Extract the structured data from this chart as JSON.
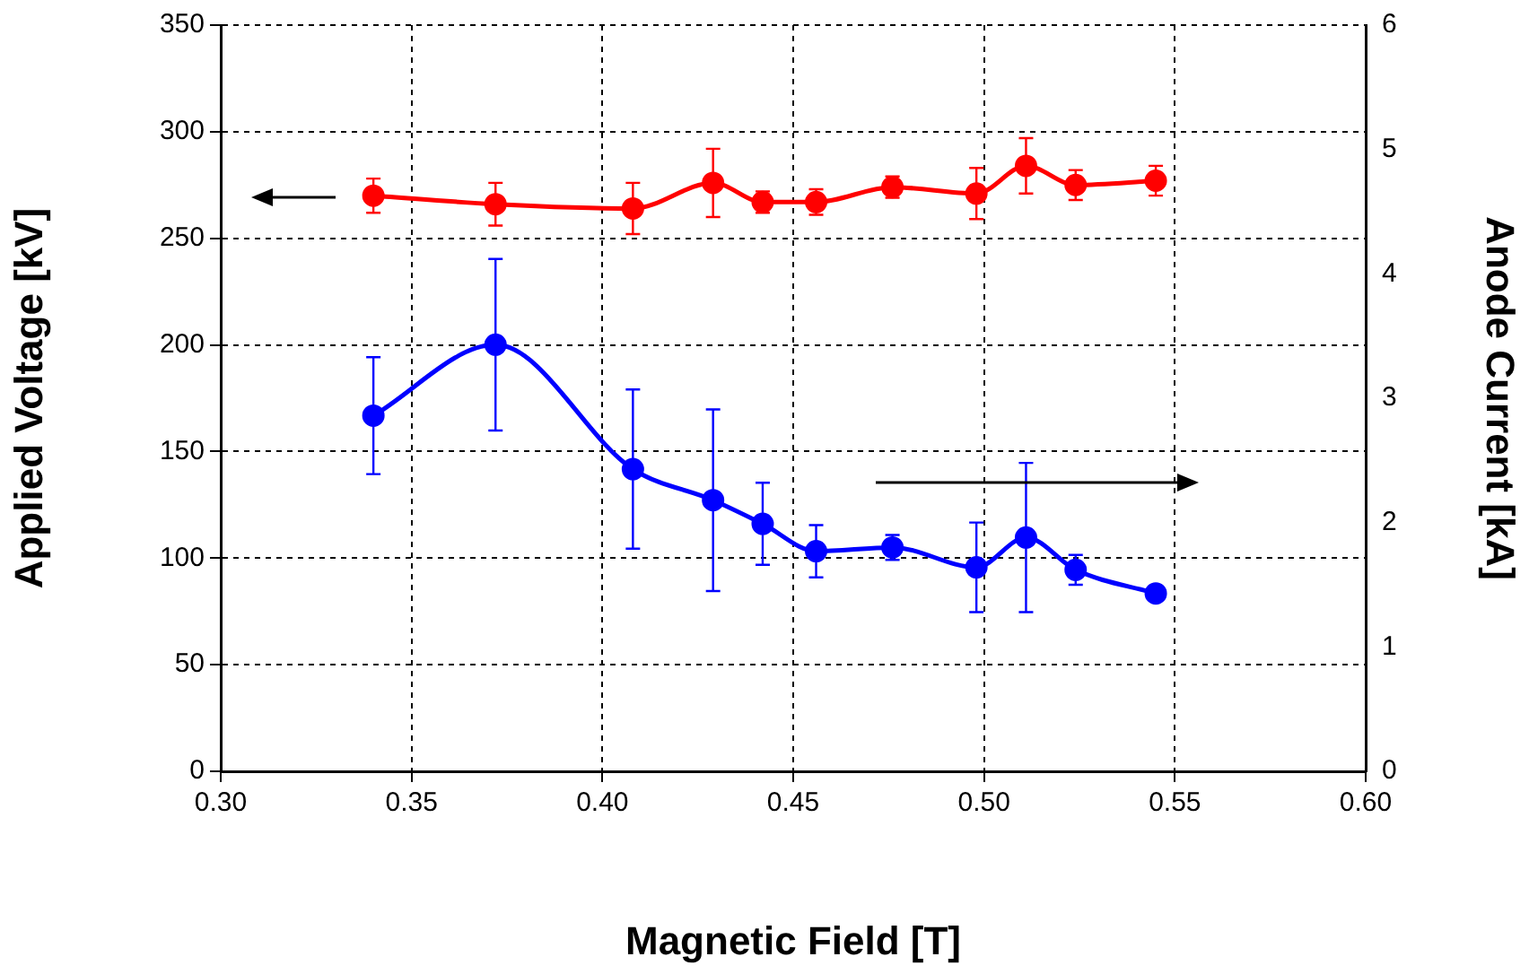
{
  "chart_data": {
    "type": "line",
    "xlabel": "Magnetic Field [T]",
    "ylabel": "Applied Voltage [kV]",
    "y2label": "Anode Current [kA]",
    "x": [
      0.34,
      0.372,
      0.408,
      0.429,
      0.442,
      0.456,
      0.476,
      0.498,
      0.511,
      0.524,
      0.545
    ],
    "series": [
      {
        "color": "#ff0000",
        "values": [
          270,
          266,
          264,
          276,
          267,
          267,
          274,
          271,
          284,
          275,
          277
        ],
        "errors": [
          8,
          10,
          12,
          16,
          5,
          6,
          5,
          12,
          13,
          7,
          7
        ]
      },
      {
        "color": "#0000ff",
        "axis": "y2",
        "values": [
          2.86,
          3.43,
          2.43,
          2.18,
          1.99,
          1.77,
          1.8,
          1.64,
          1.88,
          1.62,
          1.43
        ],
        "errors": [
          0.47,
          0.69,
          0.64,
          0.73,
          0.33,
          0.21,
          0.1,
          0.36,
          0.6,
          0.12,
          null
        ]
      }
    ],
    "xlim": [
      0.3,
      0.6
    ],
    "xticks": [
      {
        "value": 0.3,
        "label": "0.30"
      },
      {
        "value": 0.35,
        "label": "0.35"
      },
      {
        "value": 0.4,
        "label": "0.40"
      },
      {
        "value": 0.45,
        "label": "0.45"
      },
      {
        "value": 0.5,
        "label": "0.50"
      },
      {
        "value": 0.55,
        "label": "0.55"
      },
      {
        "value": 0.6,
        "label": "0.60"
      }
    ],
    "ylim": [
      0,
      350
    ],
    "yticks": [
      0,
      50,
      100,
      150,
      200,
      250,
      300,
      350
    ],
    "y2lim": [
      0,
      6
    ],
    "y2ticks": [
      0,
      1,
      2,
      3,
      4,
      5,
      6
    ],
    "grid": true,
    "legend": false,
    "marker": "circle",
    "line_style": "solid"
  }
}
